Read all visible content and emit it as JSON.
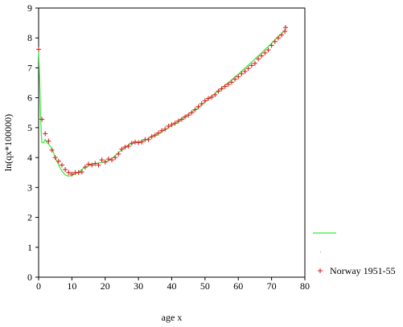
{
  "chart_data": {
    "type": "scatter",
    "title": "",
    "xlabel": "age x",
    "ylabel": "ln(qx*100000)",
    "xlim": [
      0,
      80
    ],
    "ylim": [
      0,
      9
    ],
    "xticks": [
      0,
      10,
      20,
      30,
      40,
      50,
      60,
      70,
      80
    ],
    "yticks": [
      0,
      1,
      2,
      3,
      4,
      5,
      6,
      7,
      8,
      9
    ],
    "grid": false,
    "legend_position": "right",
    "series": [
      {
        "type": "line",
        "color": "#33ee33",
        "legend_label": "",
        "x": [
          0,
          0.2,
          0.4,
          0.6,
          0.8,
          1,
          1.5,
          2,
          2.5,
          3,
          4,
          5,
          6,
          7,
          8,
          9,
          10,
          11,
          12,
          13,
          14,
          15,
          16,
          17,
          18,
          19,
          20,
          21,
          22,
          23,
          24,
          25,
          26,
          27,
          28,
          29,
          30,
          31,
          32,
          33,
          34,
          35,
          36,
          37,
          38,
          39,
          40,
          41,
          42,
          43,
          44,
          45,
          46,
          47,
          48,
          49,
          50,
          51,
          52,
          53,
          54,
          55,
          56,
          57,
          58,
          59,
          60,
          61,
          62,
          63,
          64,
          65,
          66,
          67,
          68,
          69,
          70,
          71,
          72,
          73,
          74
        ],
        "y": [
          7.6,
          7.0,
          6.2,
          5.4,
          4.8,
          4.5,
          4.5,
          4.6,
          4.5,
          4.45,
          4.3,
          4.0,
          3.75,
          3.55,
          3.42,
          3.38,
          3.4,
          3.45,
          3.52,
          3.6,
          3.68,
          3.74,
          3.78,
          3.8,
          3.82,
          3.84,
          3.86,
          3.9,
          3.97,
          4.06,
          4.16,
          4.26,
          4.35,
          4.42,
          4.47,
          4.5,
          4.52,
          4.55,
          4.59,
          4.64,
          4.69,
          4.75,
          4.81,
          4.87,
          4.93,
          5.0,
          5.07,
          5.14,
          5.21,
          5.29,
          5.36,
          5.44,
          5.52,
          5.6,
          5.68,
          5.77,
          5.86,
          5.95,
          6.04,
          6.13,
          6.22,
          6.31,
          6.41,
          6.5,
          6.6,
          6.7,
          6.79,
          6.89,
          6.99,
          7.09,
          7.19,
          7.29,
          7.4,
          7.5,
          7.61,
          7.71,
          7.82,
          7.93,
          8.03,
          8.14,
          8.25
        ]
      },
      {
        "type": "scatter",
        "color": "#dd2222",
        "legend_label": "Norway 1951-55",
        "marker": "+",
        "x": [
          0,
          1,
          2,
          3,
          4,
          5,
          6,
          7,
          8,
          9,
          10,
          11,
          12,
          13,
          14,
          15,
          16,
          17,
          18,
          19,
          20,
          21,
          22,
          23,
          24,
          25,
          26,
          27,
          28,
          29,
          30,
          31,
          32,
          33,
          34,
          35,
          36,
          37,
          38,
          39,
          40,
          41,
          42,
          43,
          44,
          45,
          46,
          47,
          48,
          49,
          50,
          51,
          52,
          53,
          54,
          55,
          56,
          57,
          58,
          59,
          60,
          61,
          62,
          63,
          64,
          65,
          66,
          67,
          68,
          69,
          70,
          71,
          72,
          73,
          74
        ],
        "y": [
          7.62,
          5.28,
          4.8,
          4.55,
          4.25,
          4.0,
          3.88,
          3.75,
          3.6,
          3.5,
          3.45,
          3.5,
          3.5,
          3.52,
          3.68,
          3.78,
          3.75,
          3.8,
          3.75,
          3.92,
          3.85,
          3.95,
          3.92,
          4.0,
          4.12,
          4.28,
          4.35,
          4.38,
          4.48,
          4.52,
          4.5,
          4.52,
          4.6,
          4.6,
          4.7,
          4.75,
          4.82,
          4.9,
          4.95,
          5.05,
          5.1,
          5.15,
          5.22,
          5.28,
          5.36,
          5.42,
          5.5,
          5.6,
          5.7,
          5.8,
          5.9,
          5.98,
          6.02,
          6.1,
          6.22,
          6.3,
          6.38,
          6.45,
          6.52,
          6.62,
          6.7,
          6.8,
          6.88,
          6.98,
          7.08,
          7.15,
          7.3,
          7.4,
          7.5,
          7.6,
          7.75,
          7.88,
          8.0,
          8.1,
          8.22
        ]
      }
    ],
    "extra_points": [
      {
        "x": 74.2,
        "y": 8.35
      }
    ]
  }
}
